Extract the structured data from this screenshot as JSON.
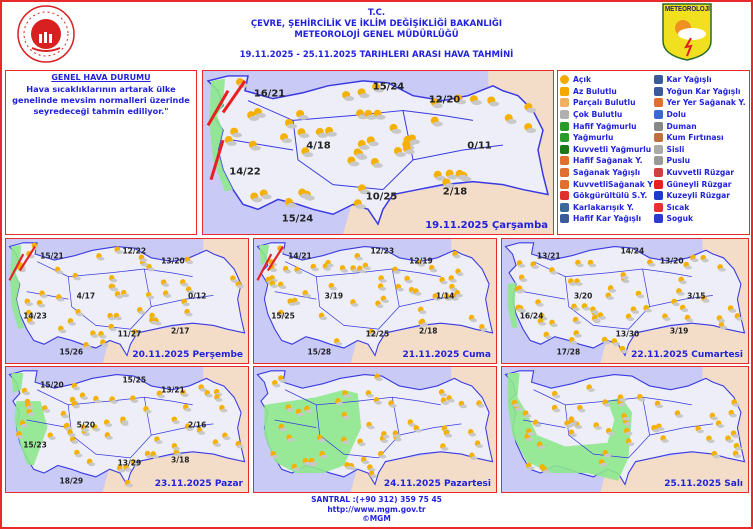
{
  "header": {
    "line1": "T.C.",
    "line2": "ÇEVRE, ŞEHİRCİLİK VE İKLİM DEĞİŞİKLİĞİ BAKANLIĞI",
    "line3": "METEOROLOJİ  GENEL  MÜDÜRLÜĞÜ",
    "line4": "19.11.2025  -  25.11.2025    TARIHLERI  ARASI  HAVA  TAHMİNİ",
    "right_logo": "METEOROLOJİ"
  },
  "general": {
    "title": "GENEL HAVA DURUMU",
    "text": "Hava sıcaklıklarının artarak ülke genelinde mevsim normalleri üzerinde seyredeceği tahmin ediliyor.\""
  },
  "maps": [
    {
      "date": "19.11.2025 Çarşamba",
      "temps": [
        "16/21",
        "15/24",
        "12/20",
        "4/18",
        "0/11",
        "14/22",
        "10/25",
        "2/18",
        "15/24"
      ]
    },
    {
      "date": "20.11.2025 Perşembe",
      "temps": [
        "15/21",
        "12/22",
        "13/20",
        "4/17",
        "0/12",
        "14/23",
        "11/27",
        "2/17",
        "15/26"
      ]
    },
    {
      "date": "21.11.2025 Cuma",
      "temps": [
        "14/21",
        "12/23",
        "12/19",
        "3/19",
        "1/14",
        "15/25",
        "12/25",
        "2/18",
        "15/28"
      ]
    },
    {
      "date": "22.11.2025 Cumartesi",
      "temps": [
        "13/21",
        "14/24",
        "13/20",
        "3/20",
        "3/15",
        "16/24",
        "13/30",
        "3/19",
        "17/28"
      ]
    },
    {
      "date": "23.11.2025 Pazar",
      "temps": [
        "15/20",
        "15/25",
        "13/21",
        "5/20",
        "2/16",
        "15/23",
        "13/29",
        "3/18",
        "18/29"
      ]
    },
    {
      "date": "24.11.2025 Pazartesi",
      "temps": []
    },
    {
      "date": "25.11.2025 Salı",
      "temps": []
    }
  ],
  "legend": {
    "items": [
      {
        "label": "Açık",
        "icon": "sun-icon",
        "color": "#f5a800"
      },
      {
        "label": "Az Bulutlu",
        "icon": "mostly-sunny-icon",
        "color": "#f5a800"
      },
      {
        "label": "Parçalı Bulutlu",
        "icon": "partly-cloudy-icon",
        "color": "#f0b060"
      },
      {
        "label": "Çok Bulutlu",
        "icon": "cloudy-icon",
        "color": "#b0b0b0"
      },
      {
        "label": "Hafif Yağmurlu",
        "icon": "light-rain-icon",
        "color": "#2a9a2a"
      },
      {
        "label": "Yağmurlu",
        "icon": "rain-icon",
        "color": "#2a9a2a"
      },
      {
        "label": "Kuvvetli Yağmurlu",
        "icon": "heavy-rain-icon",
        "color": "#1a7a1a"
      },
      {
        "label": "Hafif Sağanak Y.",
        "icon": "light-shower-icon",
        "color": "#e07030"
      },
      {
        "label": "Sağanak Yağışlı",
        "icon": "shower-icon",
        "color": "#e07030"
      },
      {
        "label": "KuvvetliSağanak Y",
        "icon": "heavy-shower-icon",
        "color": "#e07030"
      },
      {
        "label": "Gökgürültülü S.Y.",
        "icon": "thunderstorm-icon",
        "color": "#e03030"
      },
      {
        "label": "Karlakarışık Y.",
        "icon": "sleet-icon",
        "color": "#3a6a9a"
      },
      {
        "label": "Hafif Kar Yağışlı",
        "icon": "light-snow-icon",
        "color": "#3a5a9a"
      },
      {
        "label": "Kar Yağışlı",
        "icon": "snow-icon",
        "color": "#3a5a9a"
      },
      {
        "label": "Yoğun Kar Yağışlı",
        "icon": "heavy-snow-icon",
        "color": "#3a5a9a"
      },
      {
        "label": "Yer Yer Sağanak Y.",
        "icon": "scattered-shower-icon",
        "color": "#e07030"
      },
      {
        "label": "Dolu",
        "icon": "hail-icon",
        "color": "#3a6ad0"
      },
      {
        "label": "Duman",
        "icon": "smoke-icon",
        "color": "#888888"
      },
      {
        "label": "Kum Fırtınası",
        "icon": "sandstorm-icon",
        "color": "#c07040"
      },
      {
        "label": "Sisli",
        "icon": "fog-icon",
        "color": "#aaaaaa"
      },
      {
        "label": "Puslu",
        "icon": "haze-icon",
        "color": "#999999"
      },
      {
        "label": "Kuvvetli Rüzgar",
        "icon": "strong-wind-icon",
        "color": "#d04040"
      },
      {
        "label": "Güneyli Rüzgar",
        "icon": "south-wind-icon",
        "color": "#e82020"
      },
      {
        "label": "Kuzeyli Rüzgar",
        "icon": "north-wind-icon",
        "color": "#1a3ad0"
      },
      {
        "label": "Sıcak",
        "icon": "hot-icon",
        "color": "#e83030"
      },
      {
        "label": "Soguk",
        "icon": "cold-icon",
        "color": "#2a3ad0"
      }
    ]
  },
  "footer": {
    "phone": "SANTRAL :(+90 312) 359 75 45",
    "url": "http://www.mgm.gov.tr",
    "copy": "©MGM"
  },
  "colors": {
    "accent": "#2222dd",
    "border": "#e82a2a",
    "sea": "#c9cbf6",
    "land": "#eeeef8",
    "neighbor": "#f3dcc8",
    "warning": "#8de88d"
  }
}
